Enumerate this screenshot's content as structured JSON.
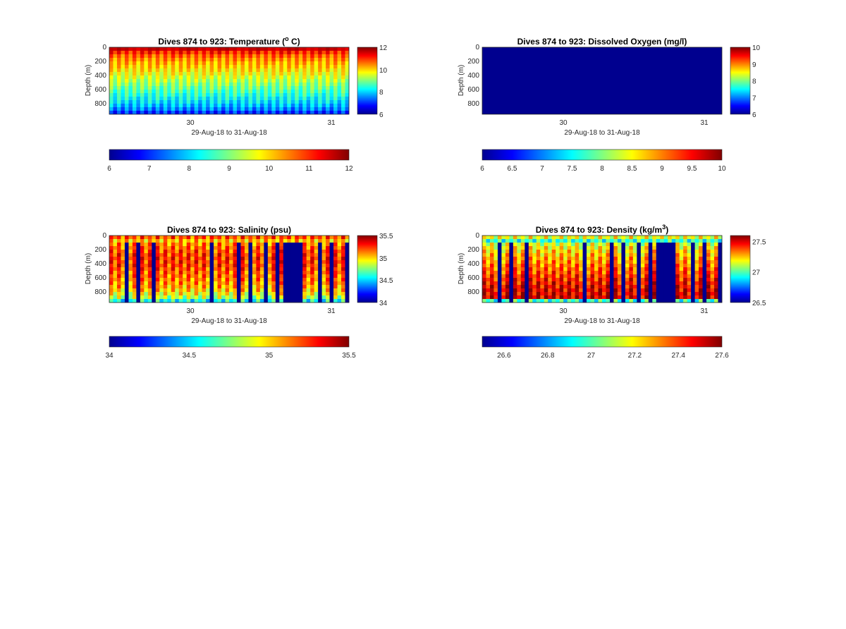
{
  "panels": [
    {
      "title_text": "Dives 874 to 923: Temperature (",
      "title_sup": "o",
      "title_tail": " C)",
      "variable": "temperature",
      "ylabel": "Depth (m)",
      "xlabel": "29-Aug-18 to 31-Aug-18",
      "yticks": [
        "0",
        "200",
        "400",
        "600",
        "800"
      ],
      "xticks": [
        "30",
        "31"
      ],
      "clim": [
        6,
        12
      ],
      "side_ticks": [
        "12",
        "10",
        "8",
        "6"
      ],
      "bottom_ticks": [
        "6",
        "7",
        "8",
        "9",
        "10",
        "11",
        "12"
      ],
      "data_pattern": "continuous"
    },
    {
      "title_text": "Dives 874 to 923: Dissolved Oxygen (mg/l)",
      "title_sup": "",
      "title_tail": "",
      "variable": "dissolved_oxygen",
      "ylabel": "Depth (m)",
      "xlabel": "29-Aug-18 to 31-Aug-18",
      "yticks": [
        "0",
        "200",
        "400",
        "600",
        "800"
      ],
      "xticks": [
        "30",
        "31"
      ],
      "clim": [
        6,
        10
      ],
      "side_ticks": [
        "10",
        "9",
        "8",
        "7",
        "6"
      ],
      "bottom_ticks": [
        "6",
        "6.5",
        "7",
        "7.5",
        "8",
        "8.5",
        "9",
        "9.5",
        "10"
      ],
      "data_pattern": "all_minimum"
    },
    {
      "title_text": "Dives 874 to 923: Salinity (psu)",
      "title_sup": "",
      "title_tail": "",
      "variable": "salinity",
      "ylabel": "Depth (m)",
      "xlabel": "29-Aug-18 to 31-Aug-18",
      "yticks": [
        "0",
        "200",
        "400",
        "600",
        "800"
      ],
      "xticks": [
        "30",
        "31"
      ],
      "clim": [
        34,
        35.5
      ],
      "side_ticks": [
        "35.5",
        "35",
        "34.5",
        "34"
      ],
      "bottom_ticks": [
        "34",
        "34.5",
        "35",
        "35.5"
      ],
      "data_pattern": "gappy"
    },
    {
      "title_text": "Dives 874 to 923: Density (kg/m",
      "title_sup": "3",
      "title_tail": ")",
      "variable": "density",
      "ylabel": "Depth (m)",
      "xlabel": "29-Aug-18 to 31-Aug-18",
      "yticks": [
        "0",
        "200",
        "400",
        "600",
        "800"
      ],
      "xticks": [
        "30",
        "31"
      ],
      "clim": [
        26.5,
        27.6
      ],
      "side_ticks": [
        "27.5",
        "27",
        "26.5"
      ],
      "bottom_ticks": [
        "26.6",
        "26.8",
        "27",
        "27.2",
        "27.4",
        "27.6"
      ],
      "data_pattern": "gappy"
    }
  ],
  "chart_data": [
    {
      "type": "heatmap",
      "title": "Dives 874 to 923: Temperature (° C)",
      "xlabel": "29-Aug-18 to 31-Aug-18",
      "ylabel": "Depth (m)",
      "x_range": [
        "29-Aug-18",
        "31-Aug-18"
      ],
      "y_range": [
        0,
        950
      ],
      "y_reversed": true,
      "color_range": [
        6,
        12
      ],
      "colormap": "jet",
      "dives": [
        874,
        923
      ],
      "profile_depths": [
        0,
        50,
        100,
        200,
        300,
        400,
        500,
        600,
        700,
        800,
        900,
        950
      ],
      "profile_values": [
        11.8,
        11.3,
        10.8,
        10.3,
        10.0,
        9.6,
        9.2,
        8.8,
        8.4,
        8.0,
        7.4,
        6.7
      ]
    },
    {
      "type": "heatmap",
      "title": "Dives 874 to 923: Dissolved Oxygen (mg/l)",
      "xlabel": "29-Aug-18 to 31-Aug-18",
      "ylabel": "Depth (m)",
      "x_range": [
        "29-Aug-18",
        "31-Aug-18"
      ],
      "y_range": [
        0,
        950
      ],
      "y_reversed": true,
      "color_range": [
        6,
        10
      ],
      "colormap": "jet",
      "dives": [
        874,
        923
      ],
      "uniform_value": 6
    },
    {
      "type": "heatmap",
      "title": "Dives 874 to 923: Salinity (psu)",
      "xlabel": "29-Aug-18 to 31-Aug-18",
      "ylabel": "Depth (m)",
      "x_range": [
        "29-Aug-18",
        "31-Aug-18"
      ],
      "y_range": [
        0,
        950
      ],
      "y_reversed": true,
      "color_range": [
        34,
        35.5
      ],
      "colormap": "jet",
      "dives": [
        874,
        923
      ],
      "profile_depths": [
        0,
        50,
        100,
        200,
        300,
        400,
        500,
        600,
        700,
        800,
        900,
        950
      ],
      "profile_values": [
        35.5,
        35.1,
        35.2,
        35.3,
        35.35,
        35.35,
        35.3,
        35.25,
        35.2,
        35.1,
        34.9,
        34.5
      ],
      "missing_value": 34
    },
    {
      "type": "heatmap",
      "title": "Dives 874 to 923: Density (kg/m³)",
      "xlabel": "29-Aug-18 to 31-Aug-18",
      "ylabel": "Depth (m)",
      "x_range": [
        "29-Aug-18",
        "31-Aug-18"
      ],
      "y_range": [
        0,
        950
      ],
      "y_reversed": true,
      "color_range": [
        26.5,
        27.6
      ],
      "colormap": "jet",
      "dives": [
        874,
        923
      ],
      "profile_depths": [
        0,
        50,
        100,
        200,
        300,
        400,
        500,
        600,
        700,
        800,
        900,
        950
      ],
      "profile_values": [
        27.6,
        26.9,
        27.2,
        27.3,
        27.35,
        27.4,
        27.45,
        27.5,
        27.55,
        27.58,
        27.6,
        26.5
      ],
      "missing_value": 26.5
    }
  ]
}
